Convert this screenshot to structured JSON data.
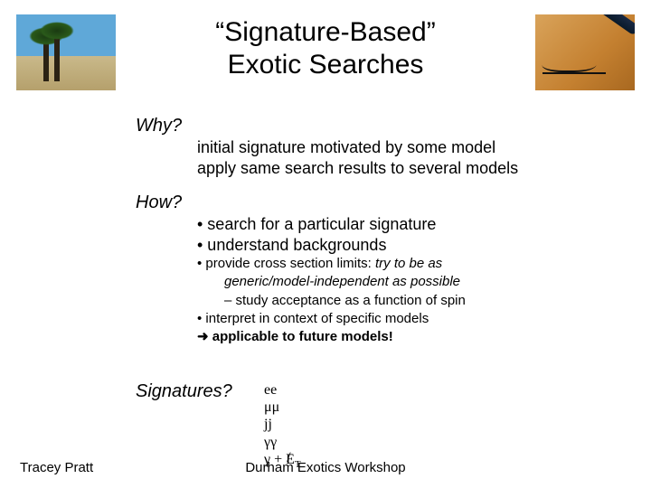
{
  "title_line1": "“Signature-Based”",
  "title_line2": "Exotic Searches",
  "why": {
    "label": "Why?",
    "line1": "initial signature motivated by some model",
    "line2": "apply same search results to several models"
  },
  "how": {
    "label": "How?",
    "bullet1": "• search for a particular signature",
    "bullet2": "• understand backgrounds",
    "bullet3a": "• provide cross section limits: ",
    "bullet3b": "try to be as",
    "bullet3c": "generic/model-independent as possible",
    "sub1": "– study acceptance as a function of spin",
    "bullet4": "• interpret in context of specific models",
    "bullet5": "➜ applicable to future models!"
  },
  "signatures": {
    "label": "Signatures?",
    "items": {
      "ee": "ee",
      "mumu": "μμ",
      "jj": "jj",
      "gg": "γγ",
      "gmet_g": "γ + ",
      "gmet_e": "E",
      "gmet_t": "T"
    }
  },
  "footer": {
    "author": "Tracey Pratt",
    "venue": "Durham Exotics Workshop"
  },
  "colors": {
    "text": "#000000",
    "background": "#ffffff"
  }
}
